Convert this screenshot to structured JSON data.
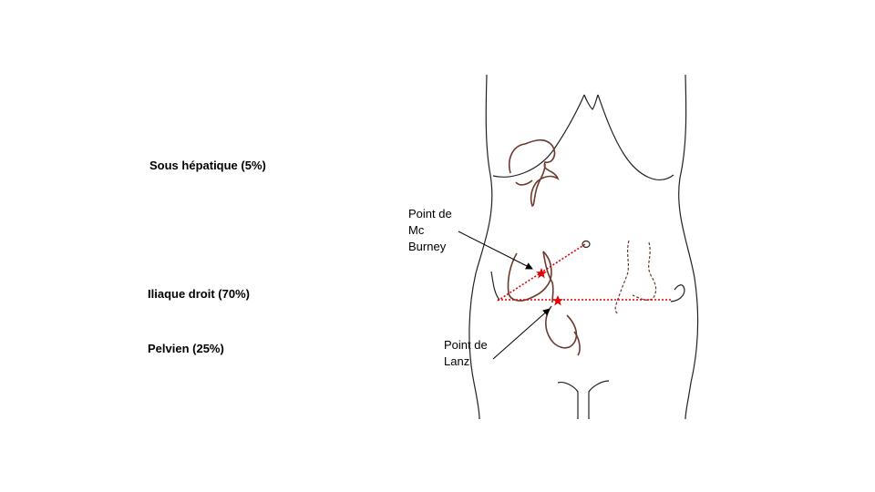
{
  "locations": {
    "subhepatic": "Sous hépatique (5%)",
    "right_iliac": "Iliaque droit (70%)",
    "pelvic": "Pelvien (25%)"
  },
  "annotations": {
    "mcburney": [
      "Point de",
      "Mc",
      "Burney"
    ],
    "lanz": [
      "Point de",
      "Lanz"
    ]
  },
  "colors": {
    "outline": "#222222",
    "organ": "#6b3a2e",
    "marker": "#e00000"
  }
}
